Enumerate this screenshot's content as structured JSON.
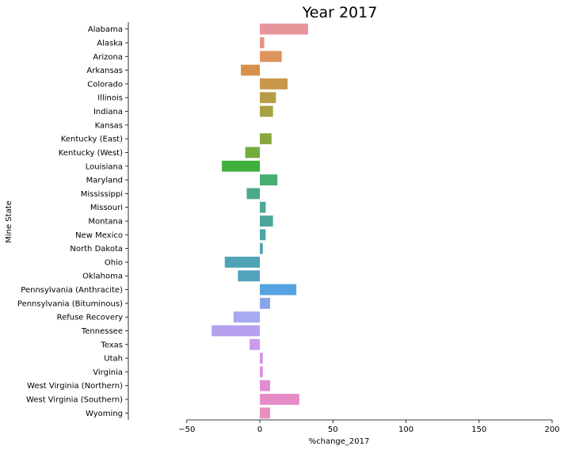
{
  "chart_data": {
    "type": "bar",
    "orientation": "horizontal",
    "title": "Year 2017",
    "xlabel": "%change_2017",
    "ylabel": "Mine State",
    "xlim": [
      -90,
      200
    ],
    "xticks": [
      -50,
      0,
      50,
      100,
      150,
      200
    ],
    "xtick_labels": [
      "−50",
      "0",
      "50",
      "100",
      "150",
      "200"
    ],
    "grid": false,
    "categories": [
      "Alabama",
      "Alaska",
      "Arizona",
      "Arkansas",
      "Colorado",
      "Illinois",
      "Indiana",
      "Kansas",
      "Kentucky (East)",
      "Kentucky (West)",
      "Louisiana",
      "Maryland",
      "Mississippi",
      "Missouri",
      "Montana",
      "New Mexico",
      "North Dakota",
      "Ohio",
      "Oklahoma",
      "Pennsylvania (Anthracite)",
      "Pennsylvania (Bituminous)",
      "Refuse Recovery",
      "Tennessee",
      "Texas",
      "Utah",
      "Virginia",
      "West Virginia (Northern)",
      "West Virginia (Southern)",
      "Wyoming"
    ],
    "values": [
      33,
      3,
      15,
      -13,
      19,
      11,
      9,
      0,
      8,
      -10,
      -26,
      12,
      -9,
      4,
      9,
      4,
      2,
      -24,
      -15,
      25,
      7,
      -18,
      -33,
      -7,
      2,
      2,
      7,
      27,
      7
    ],
    "colors": [
      "#e8949b",
      "#e8938a",
      "#e0935e",
      "#d6924a",
      "#c8984a",
      "#b79c48",
      "#a6a040",
      "#98a440",
      "#8aa63e",
      "#74ab3e",
      "#3fb03e",
      "#48ae70",
      "#49aa86",
      "#4aa894",
      "#4ba59c",
      "#4ba6a4",
      "#4da3ad",
      "#4ea4b6",
      "#52a2bd",
      "#56a3e2",
      "#87a6ec",
      "#a5abee",
      "#b5a1ee",
      "#c99bec",
      "#d791e6",
      "#dd8cdf",
      "#e18bd3",
      "#e58cc7",
      "#e78fbd"
    ]
  }
}
